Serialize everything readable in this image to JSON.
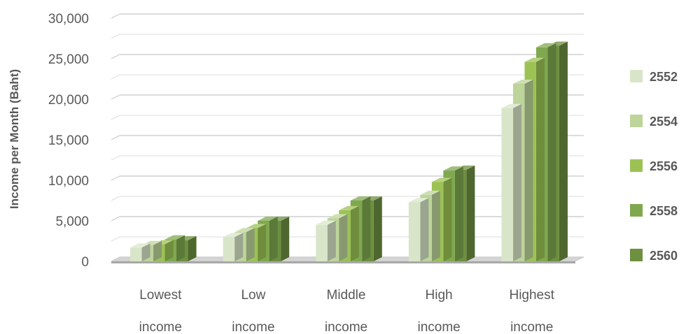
{
  "chart_data": {
    "type": "bar",
    "title": "",
    "ylabel": "Income per Month (Baht)",
    "xlabel": "",
    "ylim": [
      0,
      30000
    ],
    "yticks": [
      0,
      5000,
      10000,
      15000,
      20000,
      25000,
      30000
    ],
    "ytick_labels": [
      "0",
      "5,000",
      "10,000",
      "15,000",
      "20,000",
      "25,000",
      "30,000"
    ],
    "categories": [
      [
        "Lowest",
        "income"
      ],
      [
        "Low",
        "income"
      ],
      [
        "Middle",
        "income"
      ],
      [
        "High",
        "income"
      ],
      [
        "Highest",
        "income"
      ]
    ],
    "series": [
      {
        "name": "2552",
        "color": "#d9e5c8",
        "values": [
          1700,
          3000,
          4500,
          7300,
          18900
        ]
      },
      {
        "name": "2554",
        "color": "#bdd49a",
        "values": [
          2000,
          3600,
          5300,
          8200,
          21900
        ]
      },
      {
        "name": "2556",
        "color": "#9cc255",
        "values": [
          2100,
          4100,
          6300,
          9800,
          24600
        ]
      },
      {
        "name": "2558",
        "color": "#7fa84f",
        "values": [
          2700,
          5000,
          7500,
          11200,
          26400
        ]
      },
      {
        "name": "2560",
        "color": "#6d8f40",
        "values": [
          2600,
          5000,
          7500,
          11300,
          26600
        ]
      }
    ],
    "grid": true,
    "legend_position": "right",
    "style": "3d-column"
  }
}
